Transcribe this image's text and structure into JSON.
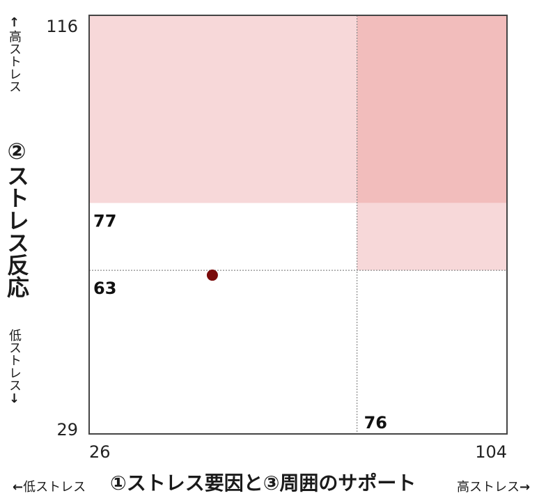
{
  "chart_data": {
    "type": "scatter",
    "x_axis": {
      "label": "①ストレス要因と③周囲のサポート",
      "min": 26,
      "max": 104,
      "ticks": [
        "26",
        "104"
      ],
      "low_hint": "低ストレス",
      "high_hint": "高ストレス"
    },
    "y_axis": {
      "label": "②ストレス反応",
      "min": 29,
      "max": 116,
      "ticks": [
        "29",
        "116"
      ],
      "high_hint": "高ストレス",
      "low_hint": "低ストレス"
    },
    "thresholds": {
      "x": 76,
      "x_label": "76",
      "y_high": 77,
      "y_high_label": "77",
      "y_low": 63,
      "y_low_label": "63"
    },
    "regions": [
      {
        "x": [
          26,
          76
        ],
        "y": [
          77,
          116
        ],
        "color": "#f7d8d9"
      },
      {
        "x": [
          76,
          104
        ],
        "y": [
          77,
          116
        ],
        "color": "#f2bdbc"
      },
      {
        "x": [
          76,
          104
        ],
        "y": [
          63,
          77
        ],
        "color": "#f7d8d9"
      }
    ],
    "points": [
      {
        "x": 49,
        "y": 62,
        "color": "#7a0a0a"
      }
    ],
    "grid": false,
    "threshold_line_color": "#8a8a8a",
    "frame_color": "#444444"
  }
}
